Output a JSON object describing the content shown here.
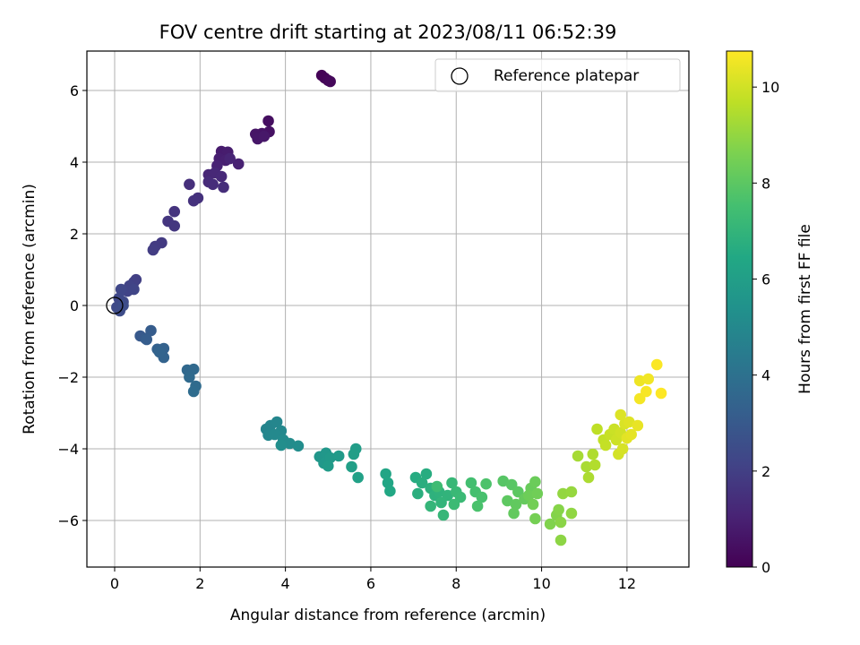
{
  "chart_data": {
    "type": "scatter",
    "title": "FOV centre drift starting at 2023/08/11 06:52:39",
    "xlabel": "Angular distance from reference (arcmin)",
    "ylabel": "Rotation from reference (arcmin)",
    "xlim": [
      -0.65,
      13.45
    ],
    "ylim": [
      -7.3,
      7.1
    ],
    "xticks": [
      0,
      2,
      4,
      6,
      8,
      10,
      12
    ],
    "yticks": [
      -6,
      -4,
      -2,
      0,
      2,
      4,
      6
    ],
    "grid": true,
    "legend": {
      "position": "top-right",
      "entries": [
        "Reference platepar"
      ]
    },
    "reference_point": {
      "x": 0,
      "y": 0
    },
    "colorbar": {
      "label": "Hours from first FF file",
      "colormap": "viridis",
      "range": [
        0,
        10.75
      ],
      "ticks": [
        0,
        2,
        4,
        6,
        8,
        10
      ]
    },
    "series": [
      {
        "points": [
          [
            4.85,
            6.42,
            0.05
          ],
          [
            4.92,
            6.35,
            0.1
          ],
          [
            5.0,
            6.28,
            0.15
          ],
          [
            5.05,
            6.25,
            0.2
          ],
          [
            3.6,
            5.15,
            0.4
          ],
          [
            3.62,
            4.85,
            0.5
          ],
          [
            3.45,
            4.8,
            0.55
          ],
          [
            3.3,
            4.78,
            0.6
          ],
          [
            3.35,
            4.65,
            0.65
          ],
          [
            3.5,
            4.72,
            0.7
          ],
          [
            2.5,
            4.3,
            0.8
          ],
          [
            2.65,
            4.28,
            0.85
          ],
          [
            2.45,
            4.1,
            0.9
          ],
          [
            2.6,
            4.05,
            0.95
          ],
          [
            2.9,
            3.95,
            1.0
          ],
          [
            2.4,
            3.9,
            1.05
          ],
          [
            2.7,
            4.1,
            1.1
          ],
          [
            2.2,
            3.65,
            1.15
          ],
          [
            2.35,
            3.7,
            1.2
          ],
          [
            2.5,
            3.6,
            1.25
          ],
          [
            2.2,
            3.45,
            1.3
          ],
          [
            2.3,
            3.38,
            1.35
          ],
          [
            2.55,
            3.3,
            1.4
          ],
          [
            1.75,
            3.38,
            1.45
          ],
          [
            1.95,
            3.0,
            1.5
          ],
          [
            1.85,
            2.92,
            1.55
          ],
          [
            1.4,
            2.62,
            1.6
          ],
          [
            1.25,
            2.35,
            1.65
          ],
          [
            1.4,
            2.22,
            1.7
          ],
          [
            1.1,
            1.75,
            1.8
          ],
          [
            0.95,
            1.65,
            1.85
          ],
          [
            0.9,
            1.55,
            1.9
          ],
          [
            0.5,
            0.72,
            2.0
          ],
          [
            0.45,
            0.65,
            2.05
          ],
          [
            0.35,
            0.55,
            2.1
          ],
          [
            0.3,
            0.4,
            2.15
          ],
          [
            0.45,
            0.45,
            2.2
          ],
          [
            0.15,
            0.45,
            2.25
          ],
          [
            0.1,
            0.2,
            2.3
          ],
          [
            0.2,
            0.1,
            2.35
          ],
          [
            0.05,
            -0.05,
            2.4
          ],
          [
            0.12,
            -0.15,
            2.45
          ],
          [
            0.2,
            0.0,
            2.5
          ],
          [
            0.6,
            -0.85,
            3.0
          ],
          [
            0.72,
            -0.92,
            3.05
          ],
          [
            0.85,
            -0.7,
            3.1
          ],
          [
            0.75,
            -0.95,
            3.15
          ],
          [
            1.0,
            -1.22,
            3.3
          ],
          [
            1.15,
            -1.2,
            3.35
          ],
          [
            1.15,
            -1.45,
            3.4
          ],
          [
            1.05,
            -1.3,
            3.45
          ],
          [
            1.7,
            -1.8,
            3.6
          ],
          [
            1.85,
            -1.78,
            3.65
          ],
          [
            1.75,
            -2.0,
            3.7
          ],
          [
            1.9,
            -2.25,
            3.75
          ],
          [
            1.85,
            -2.4,
            3.8
          ],
          [
            3.55,
            -3.45,
            4.8
          ],
          [
            3.65,
            -3.35,
            4.85
          ],
          [
            3.8,
            -3.25,
            4.9
          ],
          [
            3.6,
            -3.62,
            4.95
          ],
          [
            3.9,
            -3.5,
            5.0
          ],
          [
            3.75,
            -3.6,
            5.05
          ],
          [
            3.95,
            -3.75,
            5.1
          ],
          [
            4.1,
            -3.85,
            5.15
          ],
          [
            4.3,
            -3.92,
            5.2
          ],
          [
            3.9,
            -3.9,
            5.25
          ],
          [
            4.8,
            -4.22,
            5.6
          ],
          [
            4.95,
            -4.12,
            5.65
          ],
          [
            4.9,
            -4.4,
            5.7
          ],
          [
            5.05,
            -4.25,
            5.75
          ],
          [
            5.25,
            -4.2,
            5.8
          ],
          [
            5.0,
            -4.48,
            5.85
          ],
          [
            5.65,
            -4.0,
            5.95
          ],
          [
            5.6,
            -4.15,
            6.0
          ],
          [
            5.55,
            -4.5,
            6.05
          ],
          [
            5.7,
            -4.8,
            6.1
          ],
          [
            6.35,
            -4.7,
            6.3
          ],
          [
            6.4,
            -4.95,
            6.35
          ],
          [
            6.45,
            -5.18,
            6.4
          ],
          [
            7.05,
            -4.8,
            6.6
          ],
          [
            7.3,
            -4.7,
            6.65
          ],
          [
            7.2,
            -4.95,
            6.7
          ],
          [
            7.1,
            -5.25,
            6.75
          ],
          [
            7.4,
            -5.1,
            6.8
          ],
          [
            7.5,
            -5.3,
            6.85
          ],
          [
            7.6,
            -5.2,
            6.9
          ],
          [
            7.8,
            -5.3,
            6.95
          ],
          [
            7.65,
            -5.5,
            7.0
          ],
          [
            7.4,
            -5.6,
            7.05
          ],
          [
            7.7,
            -5.85,
            7.1
          ],
          [
            7.9,
            -4.95,
            7.15
          ],
          [
            8.0,
            -5.2,
            7.2
          ],
          [
            8.1,
            -5.35,
            7.25
          ],
          [
            7.95,
            -5.55,
            7.3
          ],
          [
            7.55,
            -5.05,
            7.35
          ],
          [
            8.35,
            -4.95,
            7.5
          ],
          [
            8.45,
            -5.2,
            7.55
          ],
          [
            8.6,
            -5.35,
            7.6
          ],
          [
            8.5,
            -5.6,
            7.65
          ],
          [
            8.7,
            -4.98,
            7.7
          ],
          [
            9.1,
            -4.9,
            7.9
          ],
          [
            9.3,
            -5.0,
            7.95
          ],
          [
            9.45,
            -5.2,
            8.0
          ],
          [
            9.2,
            -5.45,
            8.05
          ],
          [
            9.4,
            -5.55,
            8.1
          ],
          [
            9.35,
            -5.8,
            8.15
          ],
          [
            9.6,
            -5.4,
            8.2
          ],
          [
            9.75,
            -5.1,
            8.25
          ],
          [
            9.85,
            -4.92,
            8.3
          ],
          [
            9.7,
            -5.3,
            8.35
          ],
          [
            9.9,
            -5.25,
            8.4
          ],
          [
            9.8,
            -5.55,
            8.45
          ],
          [
            9.85,
            -5.95,
            8.5
          ],
          [
            10.2,
            -6.1,
            8.7
          ],
          [
            10.35,
            -5.85,
            8.75
          ],
          [
            10.4,
            -5.7,
            8.8
          ],
          [
            10.45,
            -6.05,
            8.85
          ],
          [
            10.45,
            -6.55,
            8.9
          ],
          [
            10.7,
            -5.8,
            8.95
          ],
          [
            10.5,
            -5.25,
            9.0
          ],
          [
            10.7,
            -5.2,
            9.05
          ],
          [
            10.85,
            -4.2,
            9.3
          ],
          [
            11.05,
            -4.5,
            9.35
          ],
          [
            11.1,
            -4.8,
            9.4
          ],
          [
            11.2,
            -4.15,
            9.45
          ],
          [
            11.25,
            -4.45,
            9.5
          ],
          [
            11.3,
            -3.45,
            9.7
          ],
          [
            11.45,
            -3.75,
            9.75
          ],
          [
            11.5,
            -3.9,
            9.8
          ],
          [
            11.6,
            -3.6,
            9.85
          ],
          [
            11.7,
            -3.45,
            9.9
          ],
          [
            11.75,
            -3.75,
            9.95
          ],
          [
            11.85,
            -3.55,
            10.0
          ],
          [
            11.8,
            -4.15,
            10.05
          ],
          [
            11.9,
            -4.0,
            10.1
          ],
          [
            11.95,
            -3.3,
            10.15
          ],
          [
            11.85,
            -3.05,
            10.2
          ],
          [
            12.05,
            -3.25,
            10.25
          ],
          [
            12.0,
            -3.7,
            10.3
          ],
          [
            12.1,
            -3.6,
            10.35
          ],
          [
            12.25,
            -3.35,
            10.4
          ],
          [
            12.3,
            -2.1,
            10.5
          ],
          [
            12.5,
            -2.05,
            10.55
          ],
          [
            12.3,
            -2.6,
            10.6
          ],
          [
            12.45,
            -2.4,
            10.65
          ],
          [
            12.7,
            -1.65,
            10.7
          ],
          [
            12.8,
            -2.45,
            10.75
          ]
        ]
      }
    ]
  }
}
